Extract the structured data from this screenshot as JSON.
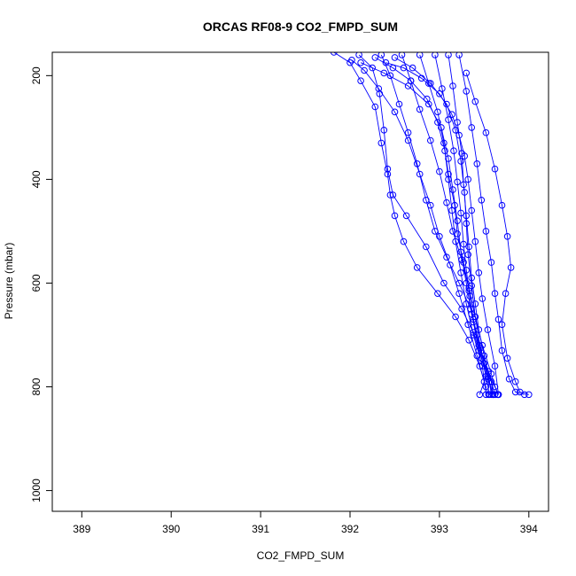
{
  "chart_data": {
    "type": "scatter",
    "title": "ORCAS RF08-9 CO2_FMPD_SUM",
    "xlabel": "CO2_FMPD_SUM",
    "ylabel": "Pressure (mbar)",
    "xlim": [
      388.67,
      394.22
    ],
    "ylim": [
      1040,
      155
    ],
    "y_reversed": true,
    "grid": false,
    "x_ticks": [
      389,
      390,
      391,
      392,
      393,
      394
    ],
    "y_ticks": [
      200,
      400,
      600,
      800,
      1000
    ],
    "line_color": "#0000ff",
    "marker": "open-circle",
    "series": [
      {
        "points": [
          [
            391.82,
            155
          ],
          [
            392.0,
            175
          ],
          [
            392.12,
            210
          ],
          [
            392.28,
            260
          ],
          [
            392.35,
            330
          ],
          [
            392.42,
            390
          ],
          [
            392.45,
            430
          ],
          [
            392.5,
            470
          ],
          [
            392.6,
            520
          ],
          [
            392.75,
            570
          ],
          [
            392.98,
            620
          ],
          [
            393.18,
            665
          ],
          [
            393.33,
            710
          ],
          [
            393.45,
            760
          ],
          [
            393.52,
            800
          ],
          [
            393.55,
            815
          ]
        ]
      },
      {
        "points": [
          [
            392.1,
            160
          ],
          [
            392.25,
            185
          ],
          [
            392.33,
            235
          ],
          [
            392.38,
            305
          ],
          [
            392.42,
            380
          ],
          [
            392.48,
            430
          ],
          [
            392.63,
            470
          ],
          [
            392.85,
            530
          ],
          [
            393.05,
            600
          ],
          [
            393.25,
            650
          ],
          [
            393.38,
            695
          ],
          [
            393.47,
            745
          ],
          [
            393.58,
            790
          ],
          [
            393.6,
            815
          ]
        ]
      },
      {
        "points": [
          [
            392.35,
            160
          ],
          [
            392.45,
            200
          ],
          [
            392.55,
            255
          ],
          [
            392.65,
            310
          ],
          [
            392.75,
            370
          ],
          [
            392.85,
            440
          ],
          [
            392.95,
            500
          ],
          [
            393.08,
            550
          ],
          [
            393.22,
            600
          ],
          [
            393.35,
            650
          ],
          [
            393.42,
            700
          ],
          [
            393.5,
            755
          ],
          [
            393.62,
            800
          ],
          [
            393.66,
            815
          ]
        ]
      },
      {
        "points": [
          [
            392.58,
            160
          ],
          [
            392.68,
            210
          ],
          [
            392.78,
            265
          ],
          [
            392.9,
            325
          ],
          [
            393.0,
            385
          ],
          [
            393.08,
            445
          ],
          [
            393.15,
            500
          ],
          [
            393.25,
            555
          ],
          [
            393.33,
            610
          ],
          [
            393.4,
            665
          ],
          [
            393.48,
            720
          ],
          [
            393.58,
            775
          ],
          [
            393.65,
            815
          ]
        ]
      },
      {
        "points": [
          [
            392.78,
            160
          ],
          [
            392.88,
            215
          ],
          [
            392.98,
            270
          ],
          [
            393.05,
            330
          ],
          [
            393.1,
            390
          ],
          [
            393.17,
            450
          ],
          [
            393.2,
            505
          ],
          [
            393.27,
            560
          ],
          [
            393.33,
            615
          ],
          [
            393.38,
            670
          ],
          [
            393.44,
            720
          ],
          [
            393.55,
            770
          ],
          [
            393.62,
            815
          ]
        ]
      },
      {
        "points": [
          [
            392.95,
            160
          ],
          [
            393.03,
            225
          ],
          [
            393.1,
            285
          ],
          [
            393.16,
            345
          ],
          [
            393.2,
            405
          ],
          [
            393.24,
            465
          ],
          [
            393.27,
            525
          ],
          [
            393.3,
            575
          ],
          [
            393.34,
            625
          ],
          [
            393.38,
            675
          ],
          [
            393.44,
            730
          ],
          [
            393.54,
            780
          ],
          [
            393.6,
            815
          ]
        ]
      },
      {
        "points": [
          [
            393.1,
            160
          ],
          [
            393.15,
            220
          ],
          [
            393.2,
            290
          ],
          [
            393.25,
            350
          ],
          [
            393.27,
            410
          ],
          [
            393.3,
            470
          ],
          [
            393.33,
            530
          ],
          [
            393.36,
            590
          ],
          [
            393.4,
            640
          ],
          [
            393.44,
            690
          ],
          [
            393.5,
            740
          ],
          [
            393.56,
            790
          ],
          [
            393.58,
            815
          ]
        ]
      },
      {
        "points": [
          [
            393.22,
            160
          ],
          [
            393.3,
            230
          ],
          [
            393.36,
            300
          ],
          [
            393.42,
            370
          ],
          [
            393.47,
            440
          ],
          [
            393.52,
            500
          ],
          [
            393.58,
            560
          ],
          [
            393.62,
            620
          ],
          [
            393.66,
            670
          ],
          [
            393.7,
            730
          ],
          [
            393.78,
            785
          ],
          [
            393.85,
            810
          ],
          [
            393.95,
            815
          ]
        ]
      },
      {
        "points": [
          [
            393.3,
            195
          ],
          [
            393.4,
            250
          ],
          [
            393.52,
            310
          ],
          [
            393.62,
            380
          ],
          [
            393.7,
            450
          ],
          [
            393.76,
            510
          ],
          [
            393.8,
            570
          ],
          [
            393.74,
            620
          ],
          [
            393.7,
            680
          ],
          [
            393.76,
            745
          ],
          [
            393.85,
            790
          ],
          [
            393.9,
            810
          ],
          [
            394.0,
            815
          ]
        ]
      },
      {
        "points": [
          [
            392.4,
            175
          ],
          [
            392.6,
            185
          ],
          [
            392.8,
            205
          ],
          [
            393.0,
            235
          ],
          [
            393.14,
            275
          ],
          [
            393.22,
            315
          ],
          [
            393.28,
            355
          ],
          [
            393.32,
            400
          ],
          [
            393.36,
            460
          ],
          [
            393.4,
            520
          ],
          [
            393.44,
            580
          ],
          [
            393.48,
            630
          ],
          [
            393.54,
            690
          ],
          [
            393.62,
            760
          ],
          [
            393.66,
            815
          ]
        ]
      },
      {
        "points": [
          [
            392.12,
            175
          ],
          [
            392.38,
            195
          ],
          [
            392.65,
            220
          ],
          [
            392.88,
            255
          ],
          [
            393.02,
            300
          ],
          [
            393.1,
            360
          ],
          [
            393.15,
            420
          ],
          [
            393.2,
            480
          ],
          [
            393.24,
            540
          ],
          [
            393.3,
            600
          ],
          [
            393.36,
            660
          ],
          [
            393.44,
            720
          ],
          [
            393.52,
            780
          ],
          [
            393.56,
            815
          ]
        ]
      },
      {
        "points": [
          [
            392.5,
            165
          ],
          [
            392.7,
            185
          ],
          [
            392.9,
            215
          ],
          [
            393.08,
            255
          ],
          [
            393.18,
            305
          ],
          [
            393.24,
            365
          ],
          [
            393.28,
            425
          ],
          [
            393.3,
            485
          ],
          [
            393.32,
            545
          ],
          [
            393.36,
            605
          ],
          [
            393.4,
            665
          ],
          [
            393.46,
            725
          ],
          [
            393.54,
            785
          ],
          [
            393.6,
            815
          ]
        ]
      },
      {
        "points": [
          [
            392.28,
            165
          ],
          [
            392.48,
            185
          ],
          [
            392.68,
            210
          ],
          [
            392.86,
            245
          ],
          [
            392.98,
            290
          ],
          [
            393.06,
            345
          ],
          [
            393.1,
            400
          ],
          [
            393.14,
            460
          ],
          [
            393.18,
            520
          ],
          [
            393.24,
            580
          ],
          [
            393.3,
            640
          ],
          [
            393.38,
            700
          ],
          [
            393.48,
            760
          ],
          [
            393.52,
            815
          ]
        ]
      },
      {
        "points": [
          [
            392.02,
            170
          ],
          [
            392.16,
            190
          ],
          [
            392.32,
            225
          ],
          [
            392.5,
            270
          ],
          [
            392.65,
            325
          ],
          [
            392.78,
            390
          ],
          [
            392.9,
            450
          ],
          [
            393.0,
            510
          ],
          [
            393.12,
            565
          ],
          [
            393.22,
            620
          ],
          [
            393.32,
            680
          ],
          [
            393.42,
            740
          ],
          [
            393.5,
            790
          ],
          [
            393.45,
            815
          ]
        ]
      }
    ]
  }
}
